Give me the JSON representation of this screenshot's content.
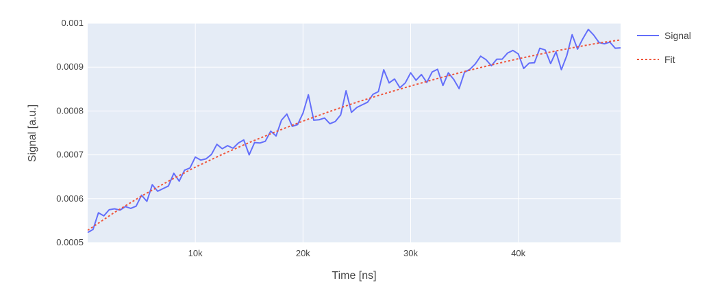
{
  "chart_data": {
    "type": "line",
    "title": "",
    "xlabel": "Time [ns]",
    "ylabel": "Signal [a.u.]",
    "xlim": [
      0,
      49500
    ],
    "ylim": [
      0.0005,
      0.001
    ],
    "x_ticks": [
      10000,
      20000,
      30000,
      40000
    ],
    "x_tick_labels": [
      "10k",
      "20k",
      "30k",
      "40k"
    ],
    "y_ticks": [
      0.0005,
      0.0006,
      0.0007,
      0.0008,
      0.0009,
      0.001
    ],
    "y_tick_labels": [
      "0.0005",
      "0.0006",
      "0.0007",
      "0.0008",
      "0.0009",
      "0.001"
    ],
    "grid": true,
    "legend_position": "top-right",
    "series": [
      {
        "name": "Signal",
        "style": "solid",
        "color": "#636efa",
        "x": [
          0,
          500,
          1000,
          1500,
          2000,
          2500,
          3000,
          3500,
          4000,
          4500,
          5000,
          5500,
          6000,
          6500,
          7000,
          7500,
          8000,
          8500,
          9000,
          9500,
          10000,
          10500,
          11000,
          11500,
          12000,
          12500,
          13000,
          13500,
          14000,
          14500,
          15000,
          15500,
          16000,
          16500,
          17000,
          17500,
          18000,
          18500,
          19000,
          19500,
          20000,
          20500,
          21000,
          21500,
          22000,
          22500,
          23000,
          23500,
          24000,
          24500,
          25000,
          25500,
          26000,
          26500,
          27000,
          27500,
          28000,
          28500,
          29000,
          29500,
          30000,
          30500,
          31000,
          31500,
          32000,
          32500,
          33000,
          33500,
          34000,
          34500,
          35000,
          35500,
          36000,
          36500,
          37000,
          37500,
          38000,
          38500,
          39000,
          39500,
          40000,
          40500,
          41000,
          41500,
          42000,
          42500,
          43000,
          43500,
          44000,
          44500,
          45000,
          45500,
          46000,
          46500,
          47000,
          47500,
          48000,
          48500,
          49000,
          49500
        ],
        "y": [
          0.000523,
          0.00053,
          0.000568,
          0.000561,
          0.000575,
          0.000577,
          0.000574,
          0.000582,
          0.000578,
          0.000583,
          0.000608,
          0.000594,
          0.000632,
          0.000617,
          0.000623,
          0.000629,
          0.000658,
          0.00064,
          0.000665,
          0.00067,
          0.000695,
          0.000688,
          0.000691,
          0.000701,
          0.000724,
          0.000714,
          0.000721,
          0.000715,
          0.000727,
          0.000734,
          0.0007,
          0.000728,
          0.000727,
          0.000731,
          0.000754,
          0.000743,
          0.000779,
          0.000793,
          0.000765,
          0.000769,
          0.000795,
          0.000837,
          0.000779,
          0.00078,
          0.000784,
          0.000771,
          0.000776,
          0.000791,
          0.000846,
          0.000797,
          0.000808,
          0.000814,
          0.00082,
          0.000838,
          0.000844,
          0.000894,
          0.000864,
          0.000873,
          0.000853,
          0.000864,
          0.000887,
          0.00087,
          0.000883,
          0.000865,
          0.000889,
          0.000895,
          0.000858,
          0.000887,
          0.000872,
          0.000851,
          0.000888,
          0.000895,
          0.000907,
          0.000925,
          0.000917,
          0.000903,
          0.000918,
          0.000918,
          0.000932,
          0.000938,
          0.00093,
          0.000897,
          0.000909,
          0.00091,
          0.000943,
          0.000939,
          0.000908,
          0.000935,
          0.000894,
          0.000926,
          0.000974,
          0.000941,
          0.000965,
          0.000986,
          0.000973,
          0.000956,
          0.000953,
          0.000957,
          0.000943,
          0.000944
        ]
      },
      {
        "name": "Fit",
        "style": "dotted",
        "color": "#ef553b",
        "x": [
          0,
          2500,
          5000,
          7500,
          10000,
          12500,
          15000,
          17500,
          20000,
          22500,
          25000,
          27500,
          30000,
          32500,
          35000,
          37500,
          40000,
          42500,
          45000,
          47500,
          49500
        ],
        "y": [
          0.000528,
          0.000569,
          0.000606,
          0.00064,
          0.000672,
          0.000701,
          0.000728,
          0.000753,
          0.000777,
          0.000799,
          0.00082,
          0.000839,
          0.000857,
          0.000874,
          0.00089,
          0.000905,
          0.000919,
          0.000932,
          0.000944,
          0.000955,
          0.000962
        ]
      }
    ]
  },
  "legend": {
    "items": [
      {
        "label": "Signal",
        "color": "#636efa",
        "style": "solid"
      },
      {
        "label": "Fit",
        "color": "#ef553b",
        "style": "dotted"
      }
    ]
  },
  "colors": {
    "plot_background": "#e5ecf6",
    "grid": "#ffffff",
    "text": "#444444"
  }
}
